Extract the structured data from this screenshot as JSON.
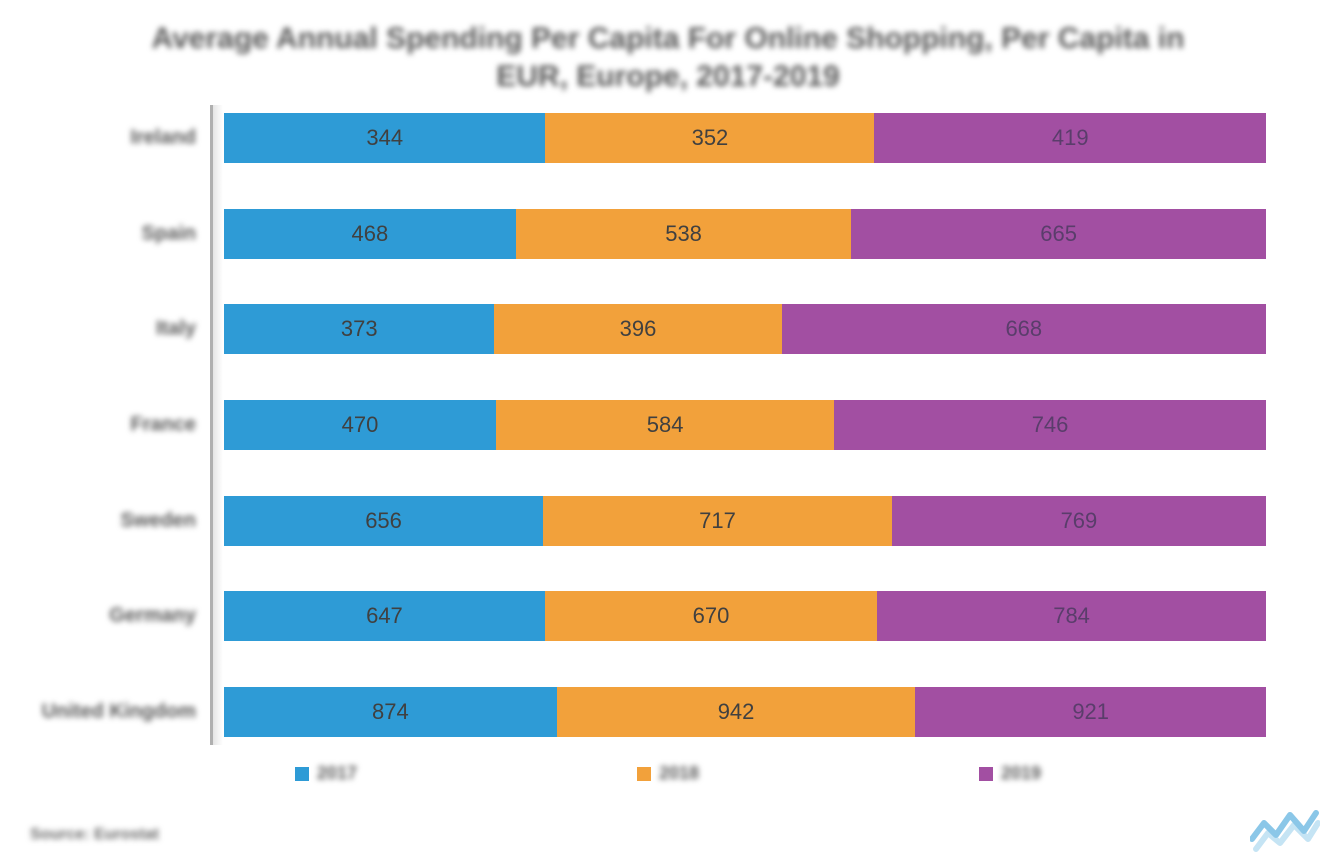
{
  "chart": {
    "type": "stacked-bar-100",
    "title": "Average Annual Spending Per Capita For Online Shopping, Per Capita in EUR, Europe, 2017-2019",
    "title_fontsize": 30,
    "title_color": "#595959",
    "background_color": "#ffffff",
    "axis_color": "#b0b0b0",
    "label_fontsize": 20,
    "label_color": "#595959",
    "value_fontsize": 22,
    "value_color_on_blue": "#404040",
    "value_color_on_orange": "#404040",
    "value_color_on_purple": "#5a3d6b",
    "categories": [
      "Ireland",
      "Spain",
      "Italy",
      "France",
      "Sweden",
      "Germany",
      "United Kingdom"
    ],
    "series": [
      {
        "name": "2017",
        "color": "#2e9bd6",
        "values": [
          344,
          468,
          373,
          470,
          656,
          647,
          874
        ]
      },
      {
        "name": "2018",
        "color": "#f2a13b",
        "values": [
          352,
          538,
          396,
          584,
          717,
          670,
          942
        ]
      },
      {
        "name": "2019",
        "color": "#a24fa2",
        "values": [
          419,
          665,
          668,
          746,
          769,
          784,
          921
        ]
      }
    ],
    "legend": {
      "fontsize": 18,
      "swatch_size": 14
    },
    "source_text": "Source: Eurostat",
    "logo_color": "#2e9bd6"
  }
}
